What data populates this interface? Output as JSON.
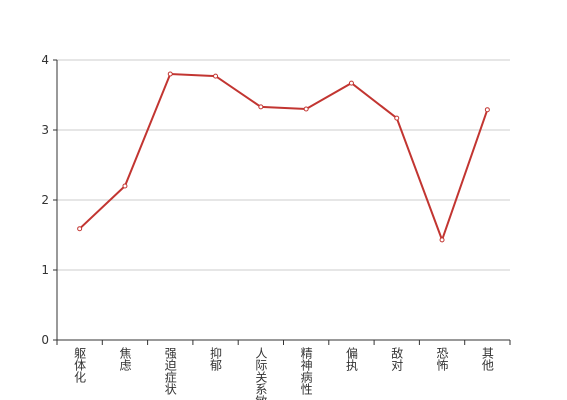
{
  "chart_data": {
    "type": "line",
    "categories": [
      "躯体化",
      "焦虑",
      "强迫症状",
      "抑郁",
      "人际关系敏感",
      "精神病性",
      "偏执",
      "敌对",
      "恐怖",
      "其他"
    ],
    "values": [
      1.59,
      2.2,
      3.8,
      3.77,
      3.33,
      3.3,
      3.67,
      3.17,
      1.43,
      3.29
    ],
    "color": "#c23531",
    "ylim": [
      0,
      4
    ],
    "yticks": [
      0,
      1,
      2,
      3,
      4
    ],
    "grid": true
  }
}
